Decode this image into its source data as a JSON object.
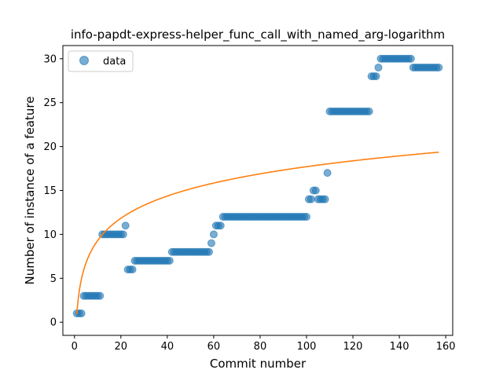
{
  "chart_data": {
    "type": "scatter",
    "title": "info-papdt-express-helper_func_call_with_named_arg-logarithm",
    "xlabel": "Commit number",
    "ylabel": "Number of instance of a feature",
    "xlim": [
      -5,
      163
    ],
    "ylim": [
      -1.5,
      31.5
    ],
    "xticks": [
      0,
      20,
      40,
      60,
      80,
      100,
      120,
      140,
      160
    ],
    "yticks": [
      0,
      5,
      10,
      15,
      20,
      25,
      30
    ],
    "grid": false,
    "legend": {
      "position": "top-left",
      "entries": [
        "data"
      ]
    },
    "colors": {
      "data": "#1f77b4",
      "fit": "#ff7f0e"
    },
    "series": [
      {
        "name": "data",
        "kind": "scatter",
        "points": [
          [
            1,
            1
          ],
          [
            2,
            1
          ],
          [
            3,
            1
          ],
          [
            4,
            3
          ],
          [
            5,
            3
          ],
          [
            6,
            3
          ],
          [
            7,
            3
          ],
          [
            8,
            3
          ],
          [
            9,
            3
          ],
          [
            10,
            3
          ],
          [
            11,
            3
          ],
          [
            12,
            10
          ],
          [
            13,
            10
          ],
          [
            14,
            10
          ],
          [
            15,
            10
          ],
          [
            16,
            10
          ],
          [
            17,
            10
          ],
          [
            18,
            10
          ],
          [
            19,
            10
          ],
          [
            20,
            10
          ],
          [
            21,
            10
          ],
          [
            22,
            11
          ],
          [
            23,
            6
          ],
          [
            24,
            6
          ],
          [
            25,
            6
          ],
          [
            26,
            7
          ],
          [
            27,
            7
          ],
          [
            28,
            7
          ],
          [
            29,
            7
          ],
          [
            30,
            7
          ],
          [
            31,
            7
          ],
          [
            32,
            7
          ],
          [
            33,
            7
          ],
          [
            34,
            7
          ],
          [
            35,
            7
          ],
          [
            36,
            7
          ],
          [
            37,
            7
          ],
          [
            38,
            7
          ],
          [
            39,
            7
          ],
          [
            40,
            7
          ],
          [
            41,
            7
          ],
          [
            42,
            8
          ],
          [
            43,
            8
          ],
          [
            44,
            8
          ],
          [
            45,
            8
          ],
          [
            46,
            8
          ],
          [
            47,
            8
          ],
          [
            48,
            8
          ],
          [
            49,
            8
          ],
          [
            50,
            8
          ],
          [
            51,
            8
          ],
          [
            52,
            8
          ],
          [
            53,
            8
          ],
          [
            54,
            8
          ],
          [
            55,
            8
          ],
          [
            56,
            8
          ],
          [
            57,
            8
          ],
          [
            58,
            8
          ],
          [
            59,
            9
          ],
          [
            60,
            10
          ],
          [
            61,
            11
          ],
          [
            62,
            11
          ],
          [
            63,
            11
          ],
          [
            64,
            12
          ],
          [
            65,
            12
          ],
          [
            66,
            12
          ],
          [
            67,
            12
          ],
          [
            68,
            12
          ],
          [
            69,
            12
          ],
          [
            70,
            12
          ],
          [
            71,
            12
          ],
          [
            72,
            12
          ],
          [
            73,
            12
          ],
          [
            74,
            12
          ],
          [
            75,
            12
          ],
          [
            76,
            12
          ],
          [
            77,
            12
          ],
          [
            78,
            12
          ],
          [
            79,
            12
          ],
          [
            80,
            12
          ],
          [
            81,
            12
          ],
          [
            82,
            12
          ],
          [
            83,
            12
          ],
          [
            84,
            12
          ],
          [
            85,
            12
          ],
          [
            86,
            12
          ],
          [
            87,
            12
          ],
          [
            88,
            12
          ],
          [
            89,
            12
          ],
          [
            90,
            12
          ],
          [
            91,
            12
          ],
          [
            92,
            12
          ],
          [
            93,
            12
          ],
          [
            94,
            12
          ],
          [
            95,
            12
          ],
          [
            96,
            12
          ],
          [
            97,
            12
          ],
          [
            98,
            12
          ],
          [
            99,
            12
          ],
          [
            100,
            12
          ],
          [
            101,
            14
          ],
          [
            102,
            14
          ],
          [
            103,
            15
          ],
          [
            104,
            15
          ],
          [
            105,
            14
          ],
          [
            106,
            14
          ],
          [
            107,
            14
          ],
          [
            108,
            14
          ],
          [
            109,
            17
          ],
          [
            110,
            24
          ],
          [
            111,
            24
          ],
          [
            112,
            24
          ],
          [
            113,
            24
          ],
          [
            114,
            24
          ],
          [
            115,
            24
          ],
          [
            116,
            24
          ],
          [
            117,
            24
          ],
          [
            118,
            24
          ],
          [
            119,
            24
          ],
          [
            120,
            24
          ],
          [
            121,
            24
          ],
          [
            122,
            24
          ],
          [
            123,
            24
          ],
          [
            124,
            24
          ],
          [
            125,
            24
          ],
          [
            126,
            24
          ],
          [
            127,
            24
          ],
          [
            128,
            28
          ],
          [
            129,
            28
          ],
          [
            130,
            28
          ],
          [
            131,
            29
          ],
          [
            132,
            30
          ],
          [
            133,
            30
          ],
          [
            134,
            30
          ],
          [
            135,
            30
          ],
          [
            136,
            30
          ],
          [
            137,
            30
          ],
          [
            138,
            30
          ],
          [
            139,
            30
          ],
          [
            140,
            30
          ],
          [
            141,
            30
          ],
          [
            142,
            30
          ],
          [
            143,
            30
          ],
          [
            144,
            30
          ],
          [
            145,
            30
          ],
          [
            146,
            29
          ],
          [
            147,
            29
          ],
          [
            148,
            29
          ],
          [
            149,
            29
          ],
          [
            150,
            29
          ],
          [
            151,
            29
          ],
          [
            152,
            29
          ],
          [
            153,
            29
          ],
          [
            154,
            29
          ],
          [
            155,
            29
          ],
          [
            156,
            29
          ],
          [
            157,
            29
          ]
        ]
      },
      {
        "kind": "line",
        "function": "logarithmic",
        "coefficients": {
          "a": 0.9,
          "b": 3.65
        },
        "x_range": [
          1,
          157
        ]
      }
    ]
  }
}
